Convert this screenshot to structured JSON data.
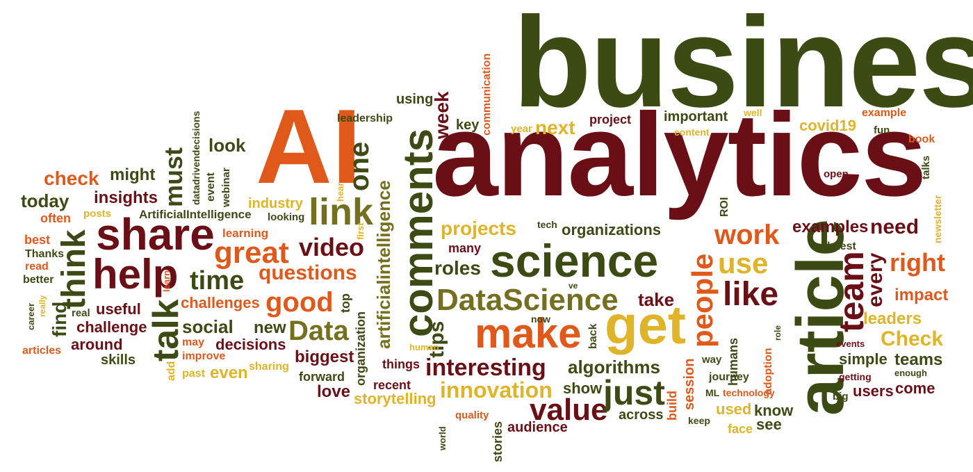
{
  "colors": {
    "dark_red": "#6b0f17",
    "dark_olive": "#3c4a14",
    "orange": "#e0591b",
    "gold": "#e0b428",
    "olive": "#74701f"
  },
  "words": [
    {
      "text": "business",
      "color": "dark_olive"
    },
    {
      "text": "analytics",
      "color": "dark_red"
    },
    {
      "text": "AI",
      "color": "orange"
    },
    {
      "text": "article",
      "color": "dark_olive"
    },
    {
      "text": "science",
      "color": "dark_olive"
    },
    {
      "text": "comments",
      "color": "dark_olive"
    },
    {
      "text": "make",
      "color": "orange"
    },
    {
      "text": "get",
      "color": "gold"
    },
    {
      "text": "DataScience",
      "color": "olive"
    },
    {
      "text": "share",
      "color": "dark_red"
    },
    {
      "text": "help",
      "color": "dark_red"
    },
    {
      "text": "think",
      "color": "dark_olive"
    },
    {
      "text": "talk",
      "color": "dark_olive"
    },
    {
      "text": "link",
      "color": "olive"
    },
    {
      "text": "good",
      "color": "orange"
    },
    {
      "text": "great",
      "color": "orange"
    },
    {
      "text": "video",
      "color": "dark_red"
    },
    {
      "text": "time",
      "color": "dark_olive"
    },
    {
      "text": "questions",
      "color": "orange"
    },
    {
      "text": "Data",
      "color": "olive"
    },
    {
      "text": "interesting",
      "color": "dark_red"
    },
    {
      "text": "innovation",
      "color": "gold"
    },
    {
      "text": "value",
      "color": "dark_red"
    },
    {
      "text": "just",
      "color": "dark_olive"
    },
    {
      "text": "people",
      "color": "orange"
    },
    {
      "text": "like",
      "color": "dark_red"
    },
    {
      "text": "work",
      "color": "orange"
    },
    {
      "text": "use",
      "color": "gold"
    },
    {
      "text": "team",
      "color": "dark_red"
    },
    {
      "text": "every",
      "color": "dark_red"
    },
    {
      "text": "right",
      "color": "orange"
    },
    {
      "text": "need",
      "color": "dark_red"
    },
    {
      "text": "Check",
      "color": "gold"
    },
    {
      "text": "one",
      "color": "dark_olive"
    },
    {
      "text": "must",
      "color": "dark_olive"
    },
    {
      "text": "projects",
      "color": "gold"
    },
    {
      "text": "roles",
      "color": "dark_olive"
    },
    {
      "text": "tips",
      "color": "dark_olive"
    },
    {
      "text": "artificialintelligence",
      "color": "olive"
    },
    {
      "text": "week",
      "color": "dark_red"
    },
    {
      "text": "next",
      "color": "gold"
    },
    {
      "text": "check",
      "color": "orange"
    },
    {
      "text": "might",
      "color": "dark_olive"
    },
    {
      "text": "today",
      "color": "dark_olive"
    },
    {
      "text": "insights",
      "color": "dark_red"
    },
    {
      "text": "look",
      "color": "dark_olive"
    },
    {
      "text": "social",
      "color": "dark_olive"
    },
    {
      "text": "decisions",
      "color": "dark_red"
    },
    {
      "text": "biggest",
      "color": "dark_red"
    },
    {
      "text": "challenges",
      "color": "orange"
    },
    {
      "text": "useful",
      "color": "dark_red"
    },
    {
      "text": "challenge",
      "color": "dark_red"
    },
    {
      "text": "around",
      "color": "dark_red"
    },
    {
      "text": "skills",
      "color": "dark_olive"
    },
    {
      "text": "find",
      "color": "dark_olive"
    },
    {
      "text": "new",
      "color": "dark_olive"
    },
    {
      "text": "even",
      "color": "gold"
    },
    {
      "text": "algorithms",
      "color": "dark_olive"
    },
    {
      "text": "storytelling",
      "color": "gold"
    },
    {
      "text": "take",
      "color": "dark_red"
    },
    {
      "text": "examples",
      "color": "dark_red"
    },
    {
      "text": "organizations",
      "color": "dark_olive"
    },
    {
      "text": "leaders",
      "color": "gold"
    },
    {
      "text": "impact",
      "color": "orange"
    },
    {
      "text": "teams",
      "color": "dark_olive"
    },
    {
      "text": "simple",
      "color": "dark_olive"
    },
    {
      "text": "covid19",
      "color": "gold"
    },
    {
      "text": "users",
      "color": "dark_red"
    },
    {
      "text": "come",
      "color": "dark_red"
    },
    {
      "text": "know",
      "color": "dark_olive"
    },
    {
      "text": "see",
      "color": "dark_olive"
    },
    {
      "text": "used",
      "color": "gold"
    },
    {
      "text": "face",
      "color": "gold"
    },
    {
      "text": "audience",
      "color": "dark_red"
    },
    {
      "text": "across",
      "color": "dark_olive"
    },
    {
      "text": "show",
      "color": "dark_olive"
    },
    {
      "text": "love",
      "color": "dark_red"
    },
    {
      "text": "recent",
      "color": "dark_red"
    },
    {
      "text": "forward",
      "color": "dark_olive"
    },
    {
      "text": "things",
      "color": "dark_red"
    },
    {
      "text": "sharing",
      "color": "gold"
    },
    {
      "text": "improve",
      "color": "orange"
    },
    {
      "text": "may",
      "color": "orange"
    },
    {
      "text": "past",
      "color": "gold"
    },
    {
      "text": "add",
      "color": "gold"
    },
    {
      "text": "industry",
      "color": "gold"
    },
    {
      "text": "learning",
      "color": "orange"
    },
    {
      "text": "looking",
      "color": "dark_olive"
    },
    {
      "text": "ArtificialIntelligence",
      "color": "dark_olive"
    },
    {
      "text": "webinar",
      "color": "dark_olive"
    },
    {
      "text": "event",
      "color": "dark_olive"
    },
    {
      "text": "datadrivendecisions",
      "color": "dark_olive"
    },
    {
      "text": "leadership",
      "color": "dark_olive"
    },
    {
      "text": "using",
      "color": "dark_olive"
    },
    {
      "text": "key",
      "color": "dark_olive"
    },
    {
      "text": "communication",
      "color": "orange"
    },
    {
      "text": "year",
      "color": "gold"
    },
    {
      "text": "project",
      "color": "dark_red"
    },
    {
      "text": "important",
      "color": "dark_olive"
    },
    {
      "text": "content",
      "color": "gold"
    },
    {
      "text": "well",
      "color": "gold"
    },
    {
      "text": "example",
      "color": "orange"
    },
    {
      "text": "fun",
      "color": "dark_olive"
    },
    {
      "text": "book",
      "color": "orange"
    },
    {
      "text": "talks",
      "color": "dark_olive"
    },
    {
      "text": "newsletter",
      "color": "gold"
    },
    {
      "text": "open",
      "color": "dark_red"
    },
    {
      "text": "ROI",
      "color": "dark_olive"
    },
    {
      "text": "latest",
      "color": "dark_olive"
    },
    {
      "text": "tech",
      "color": "dark_olive"
    },
    {
      "text": "many",
      "color": "dark_red"
    },
    {
      "text": "first",
      "color": "gold"
    },
    {
      "text": "hear",
      "color": "gold"
    },
    {
      "text": "posts",
      "color": "gold"
    },
    {
      "text": "often",
      "color": "orange"
    },
    {
      "text": "best",
      "color": "orange"
    },
    {
      "text": "Thanks",
      "color": "dark_olive"
    },
    {
      "text": "read",
      "color": "orange"
    },
    {
      "text": "better",
      "color": "dark_olive"
    },
    {
      "text": "career",
      "color": "dark_olive"
    },
    {
      "text": "really",
      "color": "gold"
    },
    {
      "text": "real",
      "color": "dark_olive"
    },
    {
      "text": "learn",
      "color": "orange"
    },
    {
      "text": "articles",
      "color": "orange"
    },
    {
      "text": "top",
      "color": "dark_olive"
    },
    {
      "text": "organization",
      "color": "dark_olive"
    },
    {
      "text": "human",
      "color": "gold"
    },
    {
      "text": "now",
      "color": "dark_olive"
    },
    {
      "text": "back",
      "color": "dark_olive"
    },
    {
      "text": "ve",
      "color": "dark_olive"
    },
    {
      "text": "quality",
      "color": "orange"
    },
    {
      "text": "world",
      "color": "dark_olive"
    },
    {
      "text": "stories",
      "color": "dark_olive"
    },
    {
      "text": "build",
      "color": "orange"
    },
    {
      "text": "session",
      "color": "orange"
    },
    {
      "text": "humans",
      "color": "dark_olive"
    },
    {
      "text": "adoption",
      "color": "orange"
    },
    {
      "text": "role",
      "color": "dark_olive"
    },
    {
      "text": "way",
      "color": "dark_olive"
    },
    {
      "text": "journey",
      "color": "dark_olive"
    },
    {
      "text": "ML",
      "color": "dark_olive"
    },
    {
      "text": "technology",
      "color": "orange"
    },
    {
      "text": "keep",
      "color": "dark_olive"
    },
    {
      "text": "events",
      "color": "dark_red"
    },
    {
      "text": "getting",
      "color": "dark_red"
    },
    {
      "text": "enough",
      "color": "dark_olive"
    },
    {
      "text": "big",
      "color": "dark_olive"
    }
  ]
}
